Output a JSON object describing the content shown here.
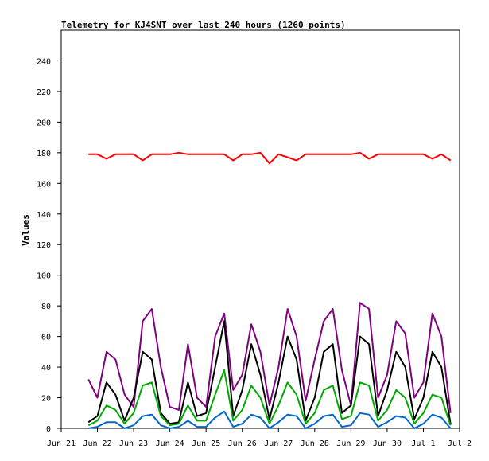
{
  "chart_data": {
    "type": "line",
    "title": "Telemetry for KJ4SNT over last 240 hours (1260 points)",
    "ylabel": "Values",
    "xlabel": "",
    "ylim": [
      0,
      260
    ],
    "yticks": [
      0,
      20,
      40,
      60,
      80,
      100,
      120,
      140,
      160,
      180,
      200,
      220,
      240
    ],
    "xlim": [
      "Jun 21",
      "Jul 2"
    ],
    "xticks": [
      "Jun 21",
      "Jun 22",
      "Jun 23",
      "Jun 24",
      "Jun 25",
      "Jun 26",
      "Jun 27",
      "Jun 28",
      "Jun 29",
      "Jun 30",
      "Jul 1",
      "Jul 2"
    ],
    "grid": false,
    "legend": "none",
    "series": [
      {
        "color": "#ff0000",
        "x": [
          "Jun 21 18:00",
          "Jun 22",
          "Jun 22 06:00",
          "Jun 22 12:00",
          "Jun 22 18:00",
          "Jun 23",
          "Jun 23 06:00",
          "Jun 23 12:00",
          "Jun 23 18:00",
          "Jun 24",
          "Jun 24 06:00",
          "Jun 24 12:00",
          "Jun 24 18:00",
          "Jun 25",
          "Jun 25 06:00",
          "Jun 25 12:00",
          "Jun 25 18:00",
          "Jun 26",
          "Jun 26 06:00",
          "Jun 26 12:00",
          "Jun 26 18:00",
          "Jun 27",
          "Jun 27 06:00",
          "Jun 27 12:00",
          "Jun 27 18:00",
          "Jun 28",
          "Jun 28 06:00",
          "Jun 28 12:00",
          "Jun 28 18:00",
          "Jun 29",
          "Jun 29 06:00",
          "Jun 29 12:00",
          "Jun 29 18:00",
          "Jun 30",
          "Jun 30 06:00",
          "Jun 30 12:00",
          "Jun 30 18:00",
          "Jul 1",
          "Jul 1 06:00",
          "Jul 1 12:00",
          "Jul 1 18:00"
        ],
        "values": [
          179,
          179,
          176,
          179,
          179,
          179,
          175,
          179,
          179,
          179,
          180,
          179,
          179,
          179,
          179,
          179,
          175,
          179,
          179,
          180,
          173,
          179,
          177,
          175,
          179,
          179,
          179,
          179,
          179,
          179,
          180,
          176,
          179,
          179,
          179,
          179,
          179,
          179,
          176,
          179,
          175
        ]
      },
      {
        "color": "#800080",
        "x": [
          "Jun 21 18:00",
          "Jun 22",
          "Jun 22 06:00",
          "Jun 22 12:00",
          "Jun 22 18:00",
          "Jun 23",
          "Jun 23 06:00",
          "Jun 23 12:00",
          "Jun 23 18:00",
          "Jun 24",
          "Jun 24 06:00",
          "Jun 24 12:00",
          "Jun 24 18:00",
          "Jun 25",
          "Jun 25 06:00",
          "Jun 25 12:00",
          "Jun 25 18:00",
          "Jun 26",
          "Jun 26 06:00",
          "Jun 26 12:00",
          "Jun 26 18:00",
          "Jun 27",
          "Jun 27 06:00",
          "Jun 27 12:00",
          "Jun 27 18:00",
          "Jun 28",
          "Jun 28 06:00",
          "Jun 28 12:00",
          "Jun 28 18:00",
          "Jun 29",
          "Jun 29 06:00",
          "Jun 29 12:00",
          "Jun 29 18:00",
          "Jun 30",
          "Jun 30 06:00",
          "Jun 30 12:00",
          "Jun 30 18:00",
          "Jul 1",
          "Jul 1 06:00",
          "Jul 1 12:00",
          "Jul 1 18:00"
        ],
        "values": [
          32,
          20,
          50,
          45,
          22,
          14,
          70,
          78,
          40,
          14,
          12,
          55,
          20,
          14,
          60,
          75,
          25,
          35,
          68,
          50,
          15,
          40,
          78,
          60,
          18,
          45,
          70,
          78,
          38,
          15,
          82,
          78,
          20,
          35,
          70,
          62,
          20,
          30,
          75,
          60,
          10
        ]
      },
      {
        "color": "#000000",
        "x": [
          "Jun 21 18:00",
          "Jun 22",
          "Jun 22 06:00",
          "Jun 22 12:00",
          "Jun 22 18:00",
          "Jun 23",
          "Jun 23 06:00",
          "Jun 23 12:00",
          "Jun 23 18:00",
          "Jun 24",
          "Jun 24 06:00",
          "Jun 24 12:00",
          "Jun 24 18:00",
          "Jun 25",
          "Jun 25 06:00",
          "Jun 25 12:00",
          "Jun 25 18:00",
          "Jun 26",
          "Jun 26 06:00",
          "Jun 26 12:00",
          "Jun 26 18:00",
          "Jun 27",
          "Jun 27 06:00",
          "Jun 27 12:00",
          "Jun 27 18:00",
          "Jun 28",
          "Jun 28 06:00",
          "Jun 28 12:00",
          "Jun 28 18:00",
          "Jun 29",
          "Jun 29 06:00",
          "Jun 29 12:00",
          "Jun 29 18:00",
          "Jun 30",
          "Jun 30 06:00",
          "Jun 30 12:00",
          "Jun 30 18:00",
          "Jul 1",
          "Jul 1 06:00",
          "Jul 1 12:00",
          "Jul 1 18:00"
        ],
        "values": [
          4,
          8,
          30,
          22,
          5,
          20,
          50,
          45,
          10,
          3,
          4,
          30,
          8,
          10,
          40,
          70,
          8,
          25,
          55,
          35,
          6,
          30,
          60,
          45,
          5,
          20,
          50,
          55,
          10,
          15,
          60,
          55,
          8,
          25,
          50,
          40,
          6,
          20,
          50,
          40,
          3
        ]
      },
      {
        "color": "#00aa00",
        "x": [
          "Jun 21 18:00",
          "Jun 22",
          "Jun 22 06:00",
          "Jun 22 12:00",
          "Jun 22 18:00",
          "Jun 23",
          "Jun 23 06:00",
          "Jun 23 12:00",
          "Jun 23 18:00",
          "Jun 24",
          "Jun 24 06:00",
          "Jun 24 12:00",
          "Jun 24 18:00",
          "Jun 25",
          "Jun 25 06:00",
          "Jun 25 12:00",
          "Jun 25 18:00",
          "Jun 26",
          "Jun 26 06:00",
          "Jun 26 12:00",
          "Jun 26 18:00",
          "Jun 27",
          "Jun 27 06:00",
          "Jun 27 12:00",
          "Jun 27 18:00",
          "Jun 28",
          "Jun 28 06:00",
          "Jun 28 12:00",
          "Jun 28 18:00",
          "Jun 29",
          "Jun 29 06:00",
          "Jun 29 12:00",
          "Jun 29 18:00",
          "Jun 30",
          "Jun 30 06:00",
          "Jun 30 12:00",
          "Jun 30 18:00",
          "Jul 1",
          "Jul 1 06:00",
          "Jul 1 12:00",
          "Jul 1 18:00"
        ],
        "values": [
          2,
          5,
          15,
          12,
          3,
          10,
          28,
          30,
          8,
          2,
          3,
          15,
          5,
          5,
          22,
          38,
          5,
          12,
          28,
          20,
          3,
          15,
          30,
          22,
          3,
          10,
          25,
          28,
          6,
          8,
          30,
          28,
          5,
          12,
          25,
          20,
          3,
          10,
          22,
          20,
          2
        ]
      },
      {
        "color": "#0066cc",
        "x": [
          "Jun 21 18:00",
          "Jun 22",
          "Jun 22 06:00",
          "Jun 22 12:00",
          "Jun 22 18:00",
          "Jun 23",
          "Jun 23 06:00",
          "Jun 23 12:00",
          "Jun 23 18:00",
          "Jun 24",
          "Jun 24 06:00",
          "Jun 24 12:00",
          "Jun 24 18:00",
          "Jun 25",
          "Jun 25 06:00",
          "Jun 25 12:00",
          "Jun 25 18:00",
          "Jun 26",
          "Jun 26 06:00",
          "Jun 26 12:00",
          "Jun 26 18:00",
          "Jun 27",
          "Jun 27 06:00",
          "Jun 27 12:00",
          "Jun 27 18:00",
          "Jun 28",
          "Jun 28 06:00",
          "Jun 28 12:00",
          "Jun 28 18:00",
          "Jun 29",
          "Jun 29 06:00",
          "Jun 29 12:00",
          "Jun 29 18:00",
          "Jun 30",
          "Jun 30 06:00",
          "Jun 30 12:00",
          "Jun 30 18:00",
          "Jul 1",
          "Jul 1 06:00",
          "Jul 1 12:00",
          "Jul 1 18:00"
        ],
        "values": [
          0,
          1,
          4,
          4,
          0,
          2,
          8,
          9,
          2,
          0,
          1,
          5,
          1,
          1,
          7,
          11,
          1,
          3,
          9,
          7,
          0,
          4,
          9,
          8,
          0,
          3,
          8,
          9,
          1,
          2,
          10,
          9,
          1,
          4,
          8,
          7,
          0,
          3,
          9,
          7,
          0
        ]
      }
    ]
  }
}
